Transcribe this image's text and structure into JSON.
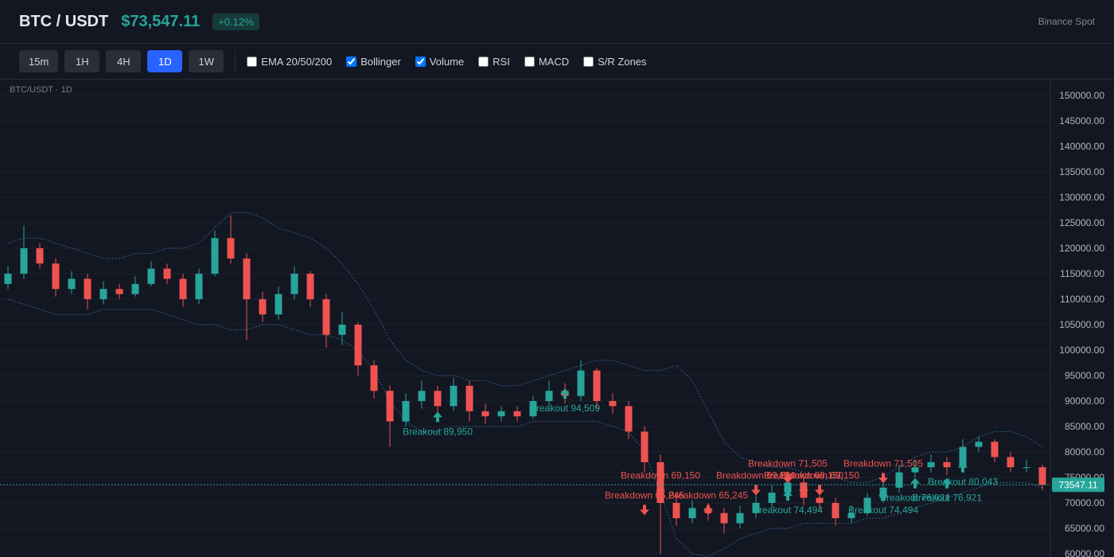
{
  "header": {
    "symbol": "BTC / USDT",
    "price": "$73,547.11",
    "change": "+0.12%",
    "exchange": "Binance Spot"
  },
  "toolbar": {
    "timeframes": [
      {
        "label": "15m",
        "active": false
      },
      {
        "label": "1H",
        "active": false
      },
      {
        "label": "4H",
        "active": false
      },
      {
        "label": "1D",
        "active": true
      },
      {
        "label": "1W",
        "active": false
      }
    ],
    "indicators": [
      {
        "label": "EMA 20/50/200",
        "checked": false
      },
      {
        "label": "Bollinger",
        "checked": true
      },
      {
        "label": "Volume",
        "checked": true
      },
      {
        "label": "RSI",
        "checked": false
      },
      {
        "label": "MACD",
        "checked": false
      },
      {
        "label": "S/R Zones",
        "checked": false
      }
    ]
  },
  "chart_data": {
    "type": "candlestick",
    "title": "BTC/USDT · 1D",
    "colors": {
      "up": "#26a69a",
      "down": "#ef5350",
      "band": "#2f5f8a"
    },
    "ylim": [
      59375,
      153125
    ],
    "yticks": [
      {
        "value": 60000,
        "label": "60000.00"
      },
      {
        "value": 65000,
        "label": "65000.00"
      },
      {
        "value": 70000,
        "label": "70000.00"
      },
      {
        "value": 75000,
        "label": "75000.00"
      },
      {
        "value": 80000,
        "label": "80000.00"
      },
      {
        "value": 85000,
        "label": "85000.00"
      },
      {
        "value": 90000,
        "label": "90000.00"
      },
      {
        "value": 95000,
        "label": "95000.00"
      },
      {
        "value": 100000,
        "label": "100000.00"
      },
      {
        "value": 105000,
        "label": "105000.00"
      },
      {
        "value": 110000,
        "label": "110000.00"
      },
      {
        "value": 115000,
        "label": "115000.00"
      },
      {
        "value": 120000,
        "label": "120000.00"
      },
      {
        "value": 125000,
        "label": "125000.00"
      },
      {
        "value": 130000,
        "label": "130000.00"
      },
      {
        "value": 135000,
        "label": "135000.00"
      },
      {
        "value": 140000,
        "label": "140000.00"
      },
      {
        "value": 145000,
        "label": "145000.00"
      },
      {
        "value": 150000,
        "label": "150000.00"
      }
    ],
    "grid": true,
    "last_price": 73547.11,
    "candles": [
      [
        113000,
        116500,
        112000,
        115000
      ],
      [
        115000,
        124500,
        114000,
        120000
      ],
      [
        120000,
        121000,
        116000,
        117000
      ],
      [
        117000,
        118000,
        110500,
        112000
      ],
      [
        112000,
        115500,
        111000,
        114000
      ],
      [
        114000,
        115000,
        108000,
        110000
      ],
      [
        110000,
        113500,
        109000,
        112000
      ],
      [
        112000,
        113000,
        110000,
        111000
      ],
      [
        111000,
        114500,
        110500,
        113000
      ],
      [
        113000,
        117500,
        112500,
        116000
      ],
      [
        116000,
        117000,
        113000,
        114000
      ],
      [
        114000,
        115000,
        108500,
        110000
      ],
      [
        110000,
        116000,
        109000,
        115000
      ],
      [
        115000,
        123500,
        114500,
        122000
      ],
      [
        122000,
        126500,
        117000,
        118000
      ],
      [
        118000,
        119000,
        102000,
        110000
      ],
      [
        110000,
        111500,
        105500,
        107000
      ],
      [
        107000,
        112500,
        106000,
        111000
      ],
      [
        111000,
        116500,
        110000,
        115000
      ],
      [
        115000,
        115500,
        108500,
        110000
      ],
      [
        110000,
        111000,
        100500,
        103000
      ],
      [
        103000,
        107500,
        101000,
        105000
      ],
      [
        105000,
        105500,
        95000,
        97000
      ],
      [
        97000,
        98000,
        90500,
        92000
      ],
      [
        92000,
        93000,
        81000,
        86000
      ],
      [
        86000,
        91500,
        85000,
        90000
      ],
      [
        90000,
        94000,
        88500,
        92000
      ],
      [
        92000,
        93000,
        86500,
        89000
      ],
      [
        89000,
        94500,
        88000,
        93000
      ],
      [
        93000,
        94000,
        86000,
        88000
      ],
      [
        88000,
        89500,
        85500,
        87000
      ],
      [
        87000,
        89000,
        86000,
        88000
      ],
      [
        88000,
        89000,
        86000,
        87000
      ],
      [
        87000,
        91000,
        86500,
        90000
      ],
      [
        90000,
        94000,
        89000,
        92000
      ],
      [
        92000,
        93500,
        89500,
        91000
      ],
      [
        91000,
        98000,
        90000,
        96000
      ],
      [
        96000,
        96500,
        88500,
        90000
      ],
      [
        90000,
        91500,
        87500,
        89000
      ],
      [
        89000,
        90000,
        82500,
        84000
      ],
      [
        84000,
        85000,
        76000,
        78000
      ],
      [
        78000,
        79500,
        60000,
        70000
      ],
      [
        70000,
        71500,
        65500,
        67000
      ],
      [
        67000,
        70500,
        66000,
        69000
      ],
      [
        69000,
        70000,
        66500,
        68000
      ],
      [
        68000,
        69000,
        64000,
        66000
      ],
      [
        66000,
        69500,
        65000,
        68000
      ],
      [
        68000,
        71500,
        67000,
        70000
      ],
      [
        70000,
        73500,
        69000,
        72000
      ],
      [
        72000,
        75500,
        71000,
        74000
      ],
      [
        74000,
        75000,
        69500,
        71000
      ],
      [
        71000,
        72500,
        68500,
        70000
      ],
      [
        70000,
        71000,
        65500,
        67000
      ],
      [
        67000,
        69500,
        66000,
        68000
      ],
      [
        68000,
        72000,
        67500,
        71000
      ],
      [
        71000,
        74500,
        70000,
        73000
      ],
      [
        73000,
        77500,
        72000,
        76000
      ],
      [
        76000,
        78500,
        75000,
        77000
      ],
      [
        77000,
        79500,
        76000,
        78000
      ],
      [
        78000,
        79000,
        75500,
        77000
      ],
      [
        77000,
        82500,
        76500,
        81000
      ],
      [
        81000,
        83000,
        80000,
        82000
      ],
      [
        82000,
        82500,
        78000,
        79000
      ],
      [
        79000,
        80000,
        76000,
        77000
      ],
      [
        77000,
        78500,
        76000,
        77000
      ],
      [
        77000,
        77500,
        72500,
        73547.11
      ]
    ],
    "bollinger": {
      "upper": [
        121000,
        122000,
        122000,
        121000,
        120000,
        119000,
        118000,
        118000,
        119000,
        119000,
        120000,
        120000,
        121000,
        124000,
        127000,
        127000,
        126000,
        124000,
        123000,
        122000,
        120000,
        117000,
        113000,
        108000,
        102000,
        98000,
        96000,
        95000,
        95000,
        94000,
        94000,
        93000,
        93000,
        94000,
        95000,
        96000,
        97000,
        98000,
        98000,
        97000,
        96000,
        96000,
        97000,
        94000,
        88000,
        82000,
        79000,
        78000,
        77000,
        77000,
        76000,
        75000,
        75000,
        74000,
        74000,
        75000,
        77000,
        79000,
        80000,
        80000,
        81000,
        83000,
        84000,
        84000,
        83000,
        81000
      ],
      "lower": [
        110000,
        109000,
        108000,
        107000,
        107000,
        107000,
        108000,
        108000,
        108000,
        108000,
        107000,
        106000,
        105000,
        105000,
        104000,
        104000,
        105000,
        105000,
        104000,
        103000,
        103000,
        102000,
        100000,
        96000,
        90000,
        86000,
        84000,
        84000,
        85000,
        85000,
        85000,
        85000,
        85000,
        86000,
        86000,
        86000,
        86000,
        86000,
        85000,
        84000,
        80000,
        72000,
        63000,
        60000,
        59500,
        61000,
        63000,
        64000,
        65000,
        65000,
        66000,
        66000,
        66000,
        66000,
        67000,
        67000,
        68000,
        69000,
        70000,
        71000,
        72000,
        73000,
        74000,
        74000,
        74000,
        73000
      ]
    },
    "signals": [
      {
        "label": "Breakout 89,950",
        "price": 89950,
        "candle": 27,
        "direction": "up"
      },
      {
        "label": "Breakout 94,509",
        "price": 94509,
        "candle": 35,
        "direction": "up"
      },
      {
        "label": "Breakdown 65,245",
        "price": 65245,
        "candle": 40,
        "direction": "down"
      },
      {
        "label": "Breakdown 69,150",
        "price": 69150,
        "candle": 41,
        "direction": "down"
      },
      {
        "label": "Breakdown 65,245",
        "price": 65245,
        "candle": 44,
        "direction": "down"
      },
      {
        "label": "Breakdown 69,150",
        "price": 69150,
        "candle": 47,
        "direction": "down"
      },
      {
        "label": "Breakout 74,494",
        "price": 74494,
        "candle": 49,
        "direction": "up"
      },
      {
        "label": "Breakdown 71,505",
        "price": 71505,
        "candle": 49,
        "direction": "down"
      },
      {
        "label": "Breakdown 69,150",
        "price": 69150,
        "candle": 50,
        "direction": "down"
      },
      {
        "label": "Breakdown 69,150",
        "price": 69150,
        "candle": 51,
        "direction": "down"
      },
      {
        "label": "Breakout 74,494",
        "price": 74494,
        "candle": 55,
        "direction": "up"
      },
      {
        "label": "Breakdown 71,505",
        "price": 71505,
        "candle": 55,
        "direction": "down"
      },
      {
        "label": "Breakout 76,921",
        "price": 76921,
        "candle": 57,
        "direction": "up"
      },
      {
        "label": "Breakout 76,921",
        "price": 76921,
        "candle": 59,
        "direction": "up"
      },
      {
        "label": "Breakout 80,043",
        "price": 80043,
        "candle": 60,
        "direction": "up"
      }
    ]
  }
}
